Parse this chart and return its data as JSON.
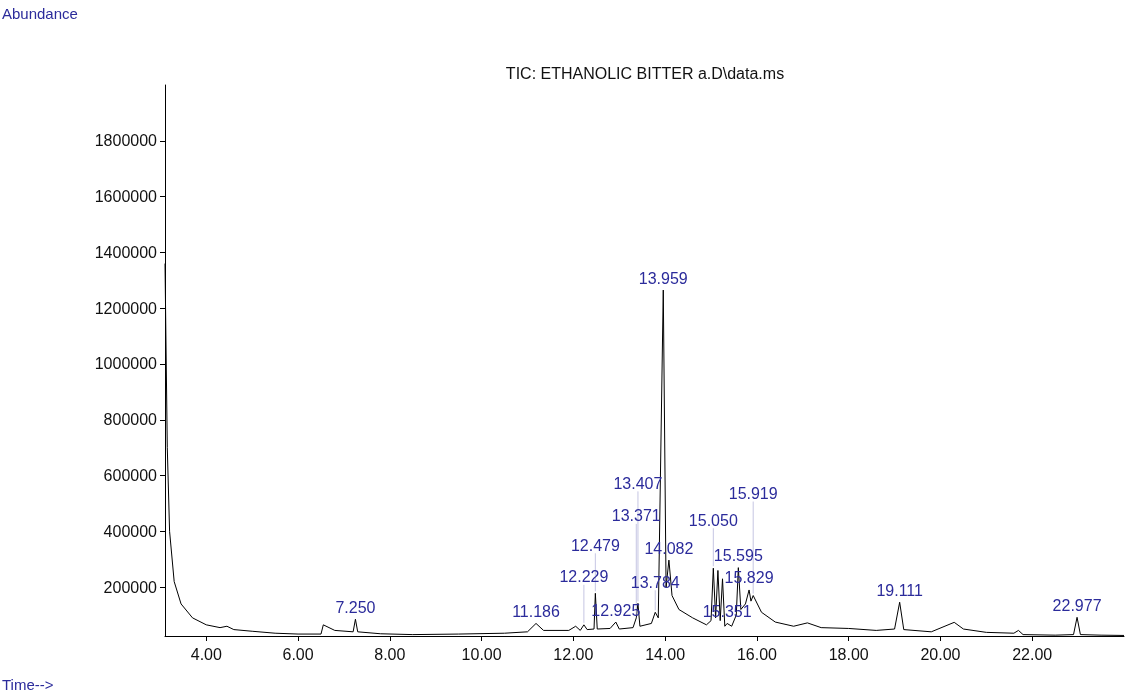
{
  "chart_data": {
    "type": "line",
    "title": "TIC: ETHANOLIC BITTER a.D\\data.ms",
    "xlabel": "Time-->",
    "ylabel": "Abundance",
    "x": [
      3.1,
      3.15,
      3.2,
      3.3,
      3.45,
      3.7,
      4.0,
      4.3,
      4.45,
      4.6,
      5.0,
      5.5,
      6.0,
      6.5,
      6.55,
      6.8,
      7.2,
      7.25,
      7.3,
      7.8,
      8.5,
      9.5,
      10.5,
      11.0,
      11.186,
      11.35,
      11.9,
      12.05,
      12.15,
      12.229,
      12.3,
      12.45,
      12.479,
      12.52,
      12.8,
      12.925,
      13.0,
      13.3,
      13.371,
      13.407,
      13.45,
      13.7,
      13.784,
      13.85,
      13.959,
      14.02,
      14.082,
      14.15,
      14.3,
      14.6,
      14.9,
      15.0,
      15.05,
      15.1,
      15.15,
      15.2,
      15.25,
      15.3,
      15.351,
      15.45,
      15.55,
      15.595,
      15.65,
      15.75,
      15.829,
      15.87,
      15.919,
      16.1,
      16.4,
      16.8,
      17.1,
      17.4,
      18.0,
      18.6,
      19.0,
      19.111,
      19.2,
      19.8,
      20.3,
      20.5,
      21.0,
      21.6,
      21.7,
      21.8,
      22.5,
      22.9,
      22.977,
      23.05,
      23.5,
      24.0
    ],
    "series": [
      {
        "color": "#000000",
        "values": [
          1360000,
          700000,
          400000,
          220000,
          140000,
          90000,
          65000,
          55000,
          60000,
          48000,
          42000,
          35000,
          32000,
          32000,
          65000,
          45000,
          40000,
          85000,
          40000,
          33000,
          30000,
          32000,
          35000,
          40000,
          70000,
          45000,
          45000,
          60000,
          45000,
          65000,
          48000,
          50000,
          178000,
          50000,
          52000,
          75000,
          50000,
          55000,
          90000,
          142000,
          60000,
          70000,
          110000,
          90000,
          1265000,
          200000,
          297000,
          170000,
          120000,
          90000,
          65000,
          80000,
          268000,
          90000,
          260000,
          80000,
          230000,
          60000,
          70000,
          60000,
          100000,
          270000,
          120000,
          140000,
          190000,
          150000,
          170000,
          110000,
          75000,
          60000,
          72000,
          55000,
          52000,
          45000,
          50000,
          146000,
          48000,
          40000,
          74000,
          50000,
          38000,
          35000,
          45000,
          30000,
          28000,
          30000,
          92000,
          30000,
          28000,
          27000
        ]
      }
    ],
    "xlim": [
      3.1,
      24
    ],
    "ylim": [
      25000,
      2000000
    ],
    "xticks": [
      {
        "value": 4,
        "label": "4.00"
      },
      {
        "value": 6,
        "label": "6.00"
      },
      {
        "value": 8,
        "label": "8.00"
      },
      {
        "value": 10,
        "label": "10.00"
      },
      {
        "value": 12,
        "label": "12.00"
      },
      {
        "value": 14,
        "label": "14.00"
      },
      {
        "value": 16,
        "label": "16.00"
      },
      {
        "value": 18,
        "label": "18.00"
      },
      {
        "value": 20,
        "label": "20.00"
      },
      {
        "value": 22,
        "label": "22.00"
      }
    ],
    "yticks": [
      200000,
      400000,
      600000,
      800000,
      1000000,
      1200000,
      1400000,
      1600000,
      1800000
    ],
    "annotations": [
      {
        "text": "7.250",
        "x": 7.25,
        "y": 85000
      },
      {
        "text": "11.186",
        "x": 11.186,
        "y": 70000
      },
      {
        "text": "12.229",
        "x": 12.229,
        "y": 65000
      },
      {
        "text": "12.479",
        "x": 12.479,
        "y": 178000
      },
      {
        "text": "12.925",
        "x": 12.925,
        "y": 75000
      },
      {
        "text": "13.371",
        "x": 13.371,
        "y": 90000
      },
      {
        "text": "13.407",
        "x": 13.407,
        "y": 142000
      },
      {
        "text": "13.784",
        "x": 13.784,
        "y": 110000
      },
      {
        "text": "13.959",
        "x": 13.959,
        "y": 1265000
      },
      {
        "text": "14.082",
        "x": 14.082,
        "y": 297000
      },
      {
        "text": "15.050",
        "x": 15.05,
        "y": 268000
      },
      {
        "text": "15.351",
        "x": 15.351,
        "y": 70000
      },
      {
        "text": "15.595",
        "x": 15.595,
        "y": 270000
      },
      {
        "text": "15.829",
        "x": 15.829,
        "y": 190000
      },
      {
        "text": "15.919",
        "x": 15.919,
        "y": 170000
      },
      {
        "text": "19.111",
        "x": 19.111,
        "y": 146000
      },
      {
        "text": "22.977",
        "x": 22.977,
        "y": 92000
      }
    ],
    "grid": false
  }
}
